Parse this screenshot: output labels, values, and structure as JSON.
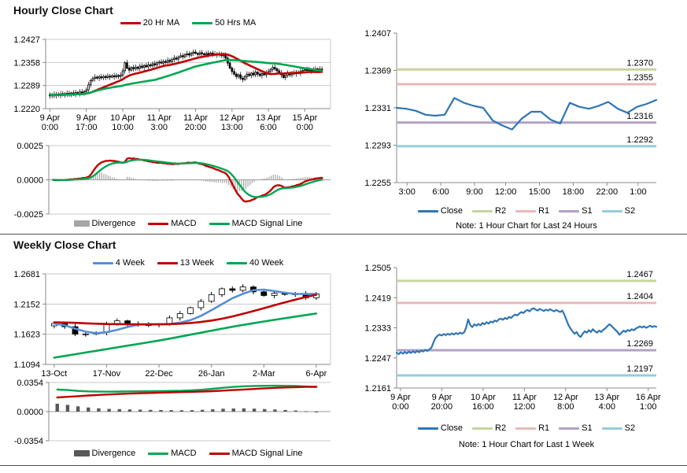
{
  "page": {
    "background": "#ffffff",
    "separator_color": "#4d4d4d"
  },
  "sections": [
    {
      "title": "Hourly Close Chart"
    },
    {
      "title": "Weekly Close Chart"
    }
  ],
  "chart_data": [
    {
      "id": "hourly_candlestick",
      "type": "candlestick",
      "legend": [
        {
          "label": "20 Hr MA",
          "color": "#C00000",
          "swatch": "line"
        },
        {
          "label": "50 Hrs MA",
          "color": "#00A651",
          "swatch": "line"
        }
      ],
      "y_ticks": [
        1.2427,
        1.2358,
        1.2289,
        1.222
      ],
      "ylim": [
        1.222,
        1.2427
      ],
      "x_ticks": [
        {
          "line1": "9 Apr",
          "line2": "0:00"
        },
        {
          "line1": "9 Apr",
          "line2": "17:00"
        },
        {
          "line1": "10 Apr",
          "line2": "10:00"
        },
        {
          "line1": "11 Apr",
          "line2": "3:00"
        },
        {
          "line1": "11 Apr",
          "line2": "20:00"
        },
        {
          "line1": "12 Apr",
          "line2": "13:00"
        },
        {
          "line1": "13 Apr",
          "line2": "6:00"
        },
        {
          "line1": "15 Apr",
          "line2": "0:00"
        }
      ],
      "candle_color": "#000000",
      "ma": [
        {
          "name": "20 Hr MA",
          "period": 20,
          "color": "#C00000"
        },
        {
          "name": "50 Hrs MA",
          "period": 50,
          "color": "#00A651"
        }
      ],
      "close": [
        1.2262,
        1.2258,
        1.2263,
        1.2259,
        1.2264,
        1.226,
        1.2265,
        1.2261,
        1.2266,
        1.2262,
        1.2267,
        1.2263,
        1.2268,
        1.2265,
        1.227,
        1.2267,
        1.2271,
        1.2276,
        1.2291,
        1.2304,
        1.231,
        1.2314,
        1.2311,
        1.2315,
        1.2312,
        1.2316,
        1.2313,
        1.2317,
        1.2314,
        1.2318,
        1.2315,
        1.2319,
        1.2316,
        1.232,
        1.2333,
        1.2357,
        1.2341,
        1.2335,
        1.2343,
        1.2339,
        1.2344,
        1.234,
        1.2347,
        1.2343,
        1.2349,
        1.2345,
        1.2351,
        1.2348,
        1.2354,
        1.2351,
        1.2357,
        1.2359,
        1.2356,
        1.2361,
        1.2358,
        1.2364,
        1.2361,
        1.2367,
        1.2371,
        1.2368,
        1.2374,
        1.2378,
        1.2375,
        1.2381,
        1.2384,
        1.238,
        1.2386,
        1.2389,
        1.2385,
        1.2382,
        1.2387,
        1.2384,
        1.2381,
        1.2385,
        1.2382,
        1.2386,
        1.2383,
        1.238,
        1.2384,
        1.2381,
        1.2378,
        1.2382,
        1.2371,
        1.2356,
        1.2341,
        1.2331,
        1.2323,
        1.2316,
        1.2321,
        1.2311,
        1.2307,
        1.2316,
        1.2323,
        1.2319,
        1.2326,
        1.2321,
        1.2329,
        1.2323,
        1.2319,
        1.2325,
        1.2321,
        1.2327,
        1.2331,
        1.2337,
        1.2343,
        1.2339,
        1.2333,
        1.2327,
        1.2321,
        1.2313,
        1.2319,
        1.2325,
        1.2321,
        1.2327,
        1.2324,
        1.2329,
        1.2326,
        1.2331,
        1.2334,
        1.2337,
        1.2334,
        1.2337,
        1.2333,
        1.2336,
        1.2339,
        1.2335,
        1.2338,
        1.2336
      ]
    },
    {
      "id": "hourly_macd",
      "type": "macd_computed",
      "source_chart": 0,
      "params": {
        "fast": 12,
        "slow": 26,
        "signal": 9
      },
      "y_ticks": [
        0.0025,
        0.0,
        -0.0025
      ],
      "ylim": [
        -0.0025,
        0.0025
      ],
      "legend": [
        {
          "label": "Divergence",
          "color": "#A6A6A6",
          "swatch": "bar"
        },
        {
          "label": "MACD",
          "color": "#C00000",
          "swatch": "line"
        },
        {
          "label": "MACD Signal Line",
          "color": "#00A651",
          "swatch": "line"
        }
      ],
      "divergence_color": "#A6A6A6",
      "macd_color": "#C00000",
      "signal_color": "#00A651"
    },
    {
      "id": "hourly_close_support_resistance",
      "type": "sr_line",
      "y_ticks": [
        1.2407,
        1.2369,
        1.2331,
        1.2293,
        1.2255
      ],
      "ylim": [
        1.2255,
        1.2407
      ],
      "x_ticks": [
        {
          "label": "3:00"
        },
        {
          "label": "6:00"
        },
        {
          "label": "9:00"
        },
        {
          "label": "12:00"
        },
        {
          "label": "15:00"
        },
        {
          "label": "18:00"
        },
        {
          "label": "22:00"
        },
        {
          "label": "1:00"
        }
      ],
      "hlines": [
        {
          "name": "R2",
          "value": 1.237,
          "label": "1.2370",
          "color": "#C3D69B"
        },
        {
          "name": "R1",
          "value": 1.2355,
          "label": "1.2355",
          "color": "#E6B9B8"
        },
        {
          "name": "S1",
          "value": 1.2316,
          "label": "1.2316",
          "color": "#B2A1C7"
        },
        {
          "name": "S2",
          "value": 1.2292,
          "label": "1.2292",
          "color": "#93CDDD"
        }
      ],
      "close_color": "#2E75B6",
      "close": [
        1.2331,
        1.233,
        1.2328,
        1.2324,
        1.2323,
        1.2324,
        1.2341,
        1.2336,
        1.2333,
        1.2331,
        1.2318,
        1.2313,
        1.2309,
        1.232,
        1.2327,
        1.2327,
        1.2319,
        1.2315,
        1.2336,
        1.2332,
        1.233,
        1.2333,
        1.2337,
        1.233,
        1.2326,
        1.2332,
        1.2335,
        1.2339
      ],
      "legend": [
        {
          "label": "Close",
          "color": "#2E75B6",
          "swatch": "line"
        },
        {
          "label": "R2",
          "color": "#C3D69B",
          "swatch": "line"
        },
        {
          "label": "R1",
          "color": "#E6B9B8",
          "swatch": "line"
        },
        {
          "label": "S1",
          "color": "#B2A1C7",
          "swatch": "line"
        },
        {
          "label": "S2",
          "color": "#93CDDD",
          "swatch": "line"
        }
      ],
      "note": "Note: 1 Hour Chart for Last 24 Hours"
    },
    {
      "id": "weekly_candlestick",
      "type": "candlestick",
      "legend": [
        {
          "label": "4 Week",
          "color": "#558ED5",
          "swatch": "line"
        },
        {
          "label": "13 Week",
          "color": "#C00000",
          "swatch": "line"
        },
        {
          "label": "40 Week",
          "color": "#00A651",
          "swatch": "line"
        }
      ],
      "y_ticks": [
        1.2681,
        1.2152,
        1.1623,
        1.1094
      ],
      "ylim": [
        1.1094,
        1.2681
      ],
      "x_ticks": [
        {
          "label": "13-Oct"
        },
        {
          "label": "17-Nov"
        },
        {
          "label": "22-Dec"
        },
        {
          "label": "26-Jan"
        },
        {
          "label": "2-Mar"
        },
        {
          "label": "6-Apr"
        }
      ],
      "candle_color": "#000000",
      "close": [
        1.181,
        1.1755,
        1.1625,
        1.1628,
        1.1652,
        1.1795,
        1.1858,
        1.1802,
        1.179,
        1.1786,
        1.1802,
        1.191,
        1.1985,
        1.2088,
        1.22,
        1.2318,
        1.242,
        1.2392,
        1.2452,
        1.2366,
        1.2302,
        1.234,
        1.2322,
        1.233,
        1.2262,
        1.2332
      ],
      "ma_series": [
        {
          "name": "4 Week",
          "color": "#558ED5",
          "values": [
            1.181,
            1.178,
            1.172,
            1.1668,
            1.164,
            1.1658,
            1.17,
            1.175,
            1.179,
            1.18,
            1.1795,
            1.18,
            1.1825,
            1.187,
            1.1945,
            1.2045,
            1.215,
            1.2255,
            1.233,
            1.2395,
            1.2405,
            1.238,
            1.235,
            1.233,
            1.2328,
            1.233
          ]
        },
        {
          "name": "13 Week",
          "color": "#C00000",
          "values": [
            1.1832,
            1.1828,
            1.1822,
            1.1815,
            1.1808,
            1.1802,
            1.18,
            1.1798,
            1.1796,
            1.1795,
            1.1796,
            1.18,
            1.1808,
            1.182,
            1.1838,
            1.1862,
            1.1895,
            1.1935,
            1.198,
            1.203,
            1.208,
            1.213,
            1.218,
            1.223,
            1.2275,
            1.2315
          ]
        },
        {
          "name": "40 Week",
          "color": "#00A651",
          "values": [
            1.1212,
            1.1242,
            1.1272,
            1.1302,
            1.1332,
            1.1362,
            1.1392,
            1.1422,
            1.1452,
            1.1482,
            1.1512,
            1.1545,
            1.158,
            1.1615,
            1.165,
            1.1685,
            1.172,
            1.1754,
            1.1786,
            1.1816,
            1.1846,
            1.1875,
            1.1903,
            1.1931,
            1.1959,
            1.1986
          ]
        }
      ]
    },
    {
      "id": "weekly_macd",
      "type": "macd_explicit",
      "y_ticks": [
        0.0354,
        0.0,
        -0.0354
      ],
      "ylim": [
        -0.0354,
        0.0354
      ],
      "legend": [
        {
          "label": "Divergence",
          "color": "#595959",
          "swatch": "bar"
        },
        {
          "label": "MACD",
          "color": "#00A651",
          "swatch": "line"
        },
        {
          "label": "MACD Signal Line",
          "color": "#C00000",
          "swatch": "line"
        }
      ],
      "divergence_color": "#595959",
      "macd_color": "#00A651",
      "signal_color": "#C00000",
      "macd": [
        0.0268,
        0.0262,
        0.0252,
        0.0246,
        0.0243,
        0.0242,
        0.0244,
        0.0246,
        0.0247,
        0.0248,
        0.025,
        0.0252,
        0.0254,
        0.0258,
        0.0266,
        0.0277,
        0.029,
        0.03,
        0.0308,
        0.0312,
        0.0314,
        0.0315,
        0.0314,
        0.0312,
        0.0305,
        0.03
      ],
      "signal": [
        0.0172,
        0.018,
        0.0188,
        0.0196,
        0.0203,
        0.0209,
        0.0214,
        0.0219,
        0.0223,
        0.0227,
        0.0231,
        0.0234,
        0.0237,
        0.024,
        0.0244,
        0.0249,
        0.0255,
        0.0262,
        0.0269,
        0.0276,
        0.0283,
        0.0289,
        0.0294,
        0.0298,
        0.03,
        0.0301
      ]
    },
    {
      "id": "weekly_close_support_resistance",
      "type": "sr_line",
      "source_close_chart": 0,
      "y_ticks": [
        1.2505,
        1.2419,
        1.2333,
        1.2247,
        1.2161
      ],
      "ylim": [
        1.2161,
        1.2505
      ],
      "x_ticks": [
        {
          "line1": "9 Apr",
          "line2": "0:00"
        },
        {
          "line1": "9 Apr",
          "line2": "20:00"
        },
        {
          "line1": "10 Apr",
          "line2": "16:00"
        },
        {
          "line1": "11 Apr",
          "line2": "12:00"
        },
        {
          "line1": "12 Apr",
          "line2": "8:00"
        },
        {
          "line1": "13 Apr",
          "line2": "4:00"
        },
        {
          "line1": "16 Apr",
          "line2": "1:00"
        }
      ],
      "hlines": [
        {
          "name": "R2",
          "value": 1.2467,
          "label": "1.2467",
          "color": "#C3D69B"
        },
        {
          "name": "R1",
          "value": 1.2404,
          "label": "1.2404",
          "color": "#E6B9B8"
        },
        {
          "name": "S1",
          "value": 1.2269,
          "label": "1.2269",
          "color": "#B2A1C7"
        },
        {
          "name": "S2",
          "value": 1.2197,
          "label": "1.2197",
          "color": "#93CDDD"
        }
      ],
      "close_color": "#2E75B6",
      "legend": [
        {
          "label": "Close",
          "color": "#2E75B6",
          "swatch": "line"
        },
        {
          "label": "R2",
          "color": "#C3D69B",
          "swatch": "line"
        },
        {
          "label": "R1",
          "color": "#E6B9B8",
          "swatch": "line"
        },
        {
          "label": "S1",
          "color": "#B2A1C7",
          "swatch": "line"
        },
        {
          "label": "S2",
          "color": "#93CDDD",
          "swatch": "line"
        }
      ],
      "note": "Note: 1 Hour Chart for Last 1 Week"
    }
  ]
}
